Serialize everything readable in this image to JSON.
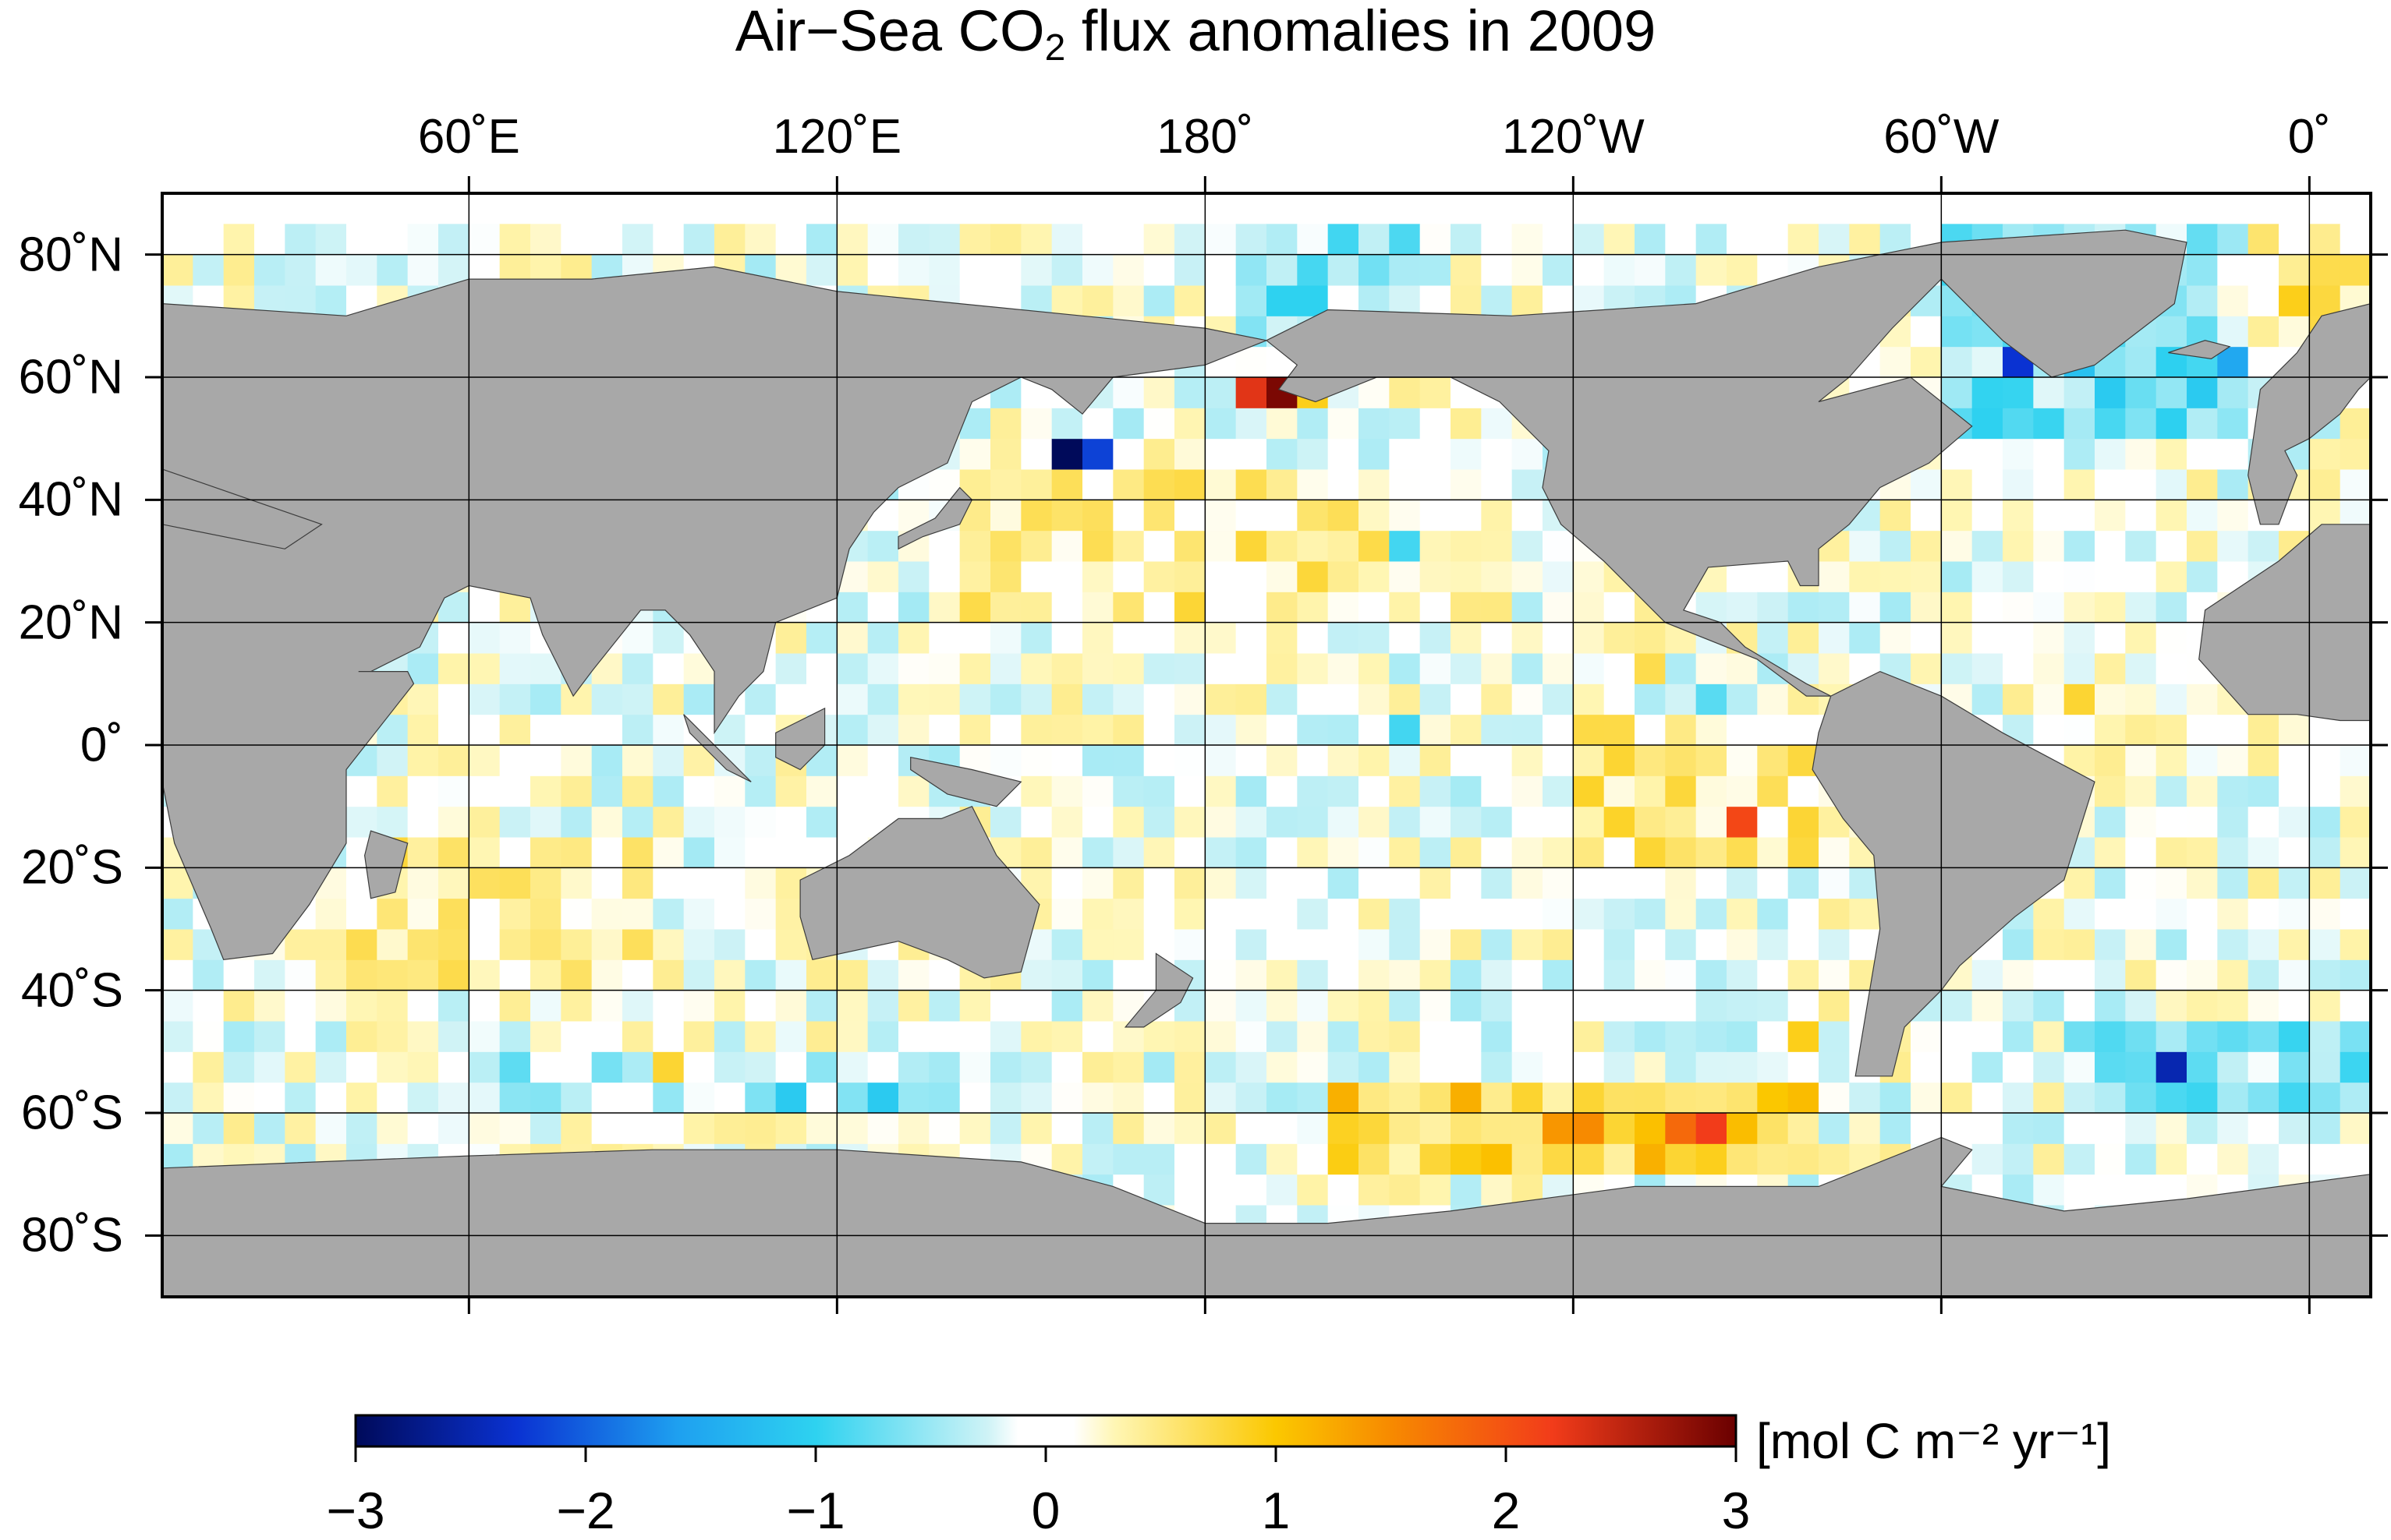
{
  "title": {
    "prefix": "Air−Sea CO",
    "subscript": "2",
    "suffix": " flux anomalies in 2009"
  },
  "colors": {
    "land": "#a8a8a8",
    "missing": "#9a9a9a",
    "ocean_zero": "#ffffff",
    "frame": "#000000",
    "grid": "#000000"
  },
  "map": {
    "projection": "equirectangular",
    "lon_range": [
      10,
      370
    ],
    "lat_range": [
      -90,
      90
    ],
    "x_ticks": [
      {
        "lon": 60,
        "label": "60˚E"
      },
      {
        "lon": 120,
        "label": "120˚E"
      },
      {
        "lon": 180,
        "label": "180˚"
      },
      {
        "lon": 240,
        "label": "120˚W"
      },
      {
        "lon": 300,
        "label": "60˚W"
      },
      {
        "lon": 360,
        "label": "0˚"
      }
    ],
    "y_ticks": [
      {
        "lat": 80,
        "label": "80˚N"
      },
      {
        "lat": 60,
        "label": "60˚N"
      },
      {
        "lat": 40,
        "label": "40˚N"
      },
      {
        "lat": 20,
        "label": "20˚N"
      },
      {
        "lat": 0,
        "label": "0˚"
      },
      {
        "lat": -20,
        "label": "20˚S"
      },
      {
        "lat": -40,
        "label": "40˚S"
      },
      {
        "lat": -60,
        "label": "60˚S"
      },
      {
        "lat": -80,
        "label": "80˚S"
      }
    ],
    "grid": true
  },
  "chart_data": {
    "type": "heatmap",
    "title": "Air−Sea CO2 flux anomalies in 2009",
    "units": "[mol C m⁻² yr⁻¹]",
    "value_range": [
      -3,
      3
    ],
    "cell_size_deg": 5,
    "colorbar_ticks": [
      "−3",
      "−2",
      "−1",
      "0",
      "1",
      "2",
      "3"
    ],
    "notable_cells": [
      {
        "lon": 157.5,
        "lat": 47.5,
        "value": -3.0
      },
      {
        "lon": 162.5,
        "lat": 47.5,
        "value": -2.2
      },
      {
        "lon": 187.5,
        "lat": 57.5,
        "value": 2.3
      },
      {
        "lon": 192.5,
        "lat": 57.5,
        "value": 2.9
      },
      {
        "lon": 197.5,
        "lat": 57.5,
        "value": 0.9
      },
      {
        "lon": 312.5,
        "lat": 62.5,
        "value": -2.3
      },
      {
        "lon": 347.5,
        "lat": 62.5,
        "value": -1.5
      },
      {
        "lon": 337.5,
        "lat": -52.5,
        "value": -2.5
      },
      {
        "lon": 267.5,
        "lat": -12.5,
        "value": 2.1
      },
      {
        "lon": 262.5,
        "lat": -62.5,
        "value": 2.2
      },
      {
        "lon": 257.5,
        "lat": -62.5,
        "value": 1.8
      },
      {
        "lon": 242.5,
        "lat": -62.5,
        "value": 1.5
      },
      {
        "lon": 237.5,
        "lat": -62.5,
        "value": 1.4
      },
      {
        "lon": 357.5,
        "lat": 72.5,
        "value": 0.9
      },
      {
        "lon": 362.5,
        "lat": 77.5,
        "value": 0.7
      },
      {
        "lon": 367.5,
        "lat": 62.5,
        "value": -1.2
      },
      {
        "lon": 342.5,
        "lat": 57.5,
        "value": -1.1
      },
      {
        "lon": 327.5,
        "lat": 57.5,
        "value": -1.1
      },
      {
        "lon": 322.5,
        "lat": 62.5,
        "value": -1.2
      },
      {
        "lon": 192.5,
        "lat": 72.5,
        "value": -1.0
      },
      {
        "lon": 197.5,
        "lat": 72.5,
        "value": -1.0
      },
      {
        "lon": 212.5,
        "lat": 32.5,
        "value": -0.9
      },
      {
        "lon": 112.5,
        "lat": -57.5,
        "value": -1.1
      },
      {
        "lon": 127.5,
        "lat": -57.5,
        "value": -1.1
      },
      {
        "lon": 92.5,
        "lat": -52.5,
        "value": 0.8
      },
      {
        "lon": 252.5,
        "lat": 12.5,
        "value": 0.7
      },
      {
        "lon": 277.5,
        "lat": -47.5,
        "value": 0.9
      },
      {
        "lon": 322.5,
        "lat": 7.5,
        "value": 0.8
      },
      {
        "lon": 212.5,
        "lat": 2.5,
        "value": -0.9
      },
      {
        "lon": 262.5,
        "lat": 7.5,
        "value": -0.8
      }
    ]
  },
  "colorbar": {
    "stops": [
      {
        "v": -3,
        "c": "#000a5a"
      },
      {
        "v": -2.3,
        "c": "#0a32d2"
      },
      {
        "v": -1.6,
        "c": "#1ea0f0"
      },
      {
        "v": -1.0,
        "c": "#2ed2f0"
      },
      {
        "v": -0.25,
        "c": "#cff3f6"
      },
      {
        "v": -0.12,
        "c": "#ffffff"
      },
      {
        "v": 0.12,
        "c": "#ffffff"
      },
      {
        "v": 0.3,
        "c": "#fff6b4"
      },
      {
        "v": 1.0,
        "c": "#fbc800"
      },
      {
        "v": 1.5,
        "c": "#f78a00"
      },
      {
        "v": 2.2,
        "c": "#f23c1a"
      },
      {
        "v": 3,
        "c": "#6a0000"
      }
    ]
  }
}
